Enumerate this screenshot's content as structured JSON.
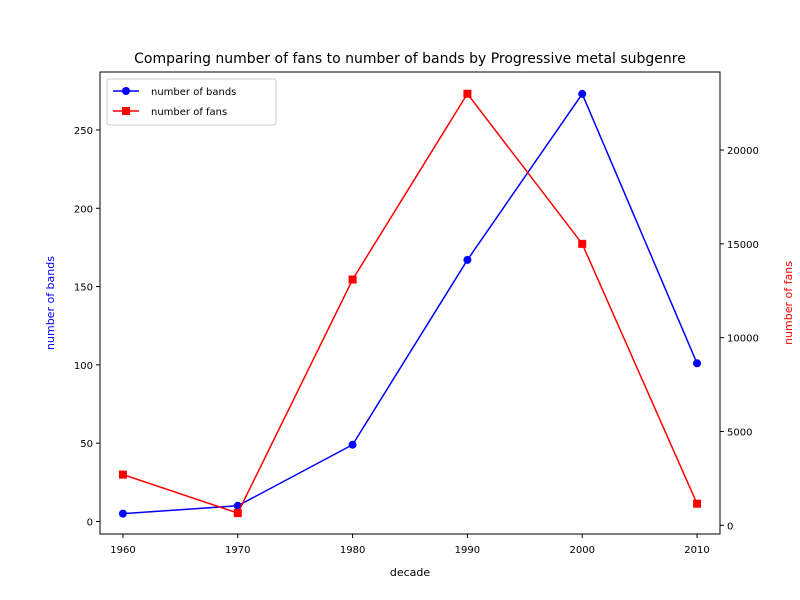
{
  "chart_data": {
    "type": "line",
    "title": "Comparing number of fans to number of bands by Progressive metal subgenre",
    "xlabel": "decade",
    "x": [
      1960,
      1970,
      1980,
      1990,
      2000,
      2010
    ],
    "xticks": [
      1960,
      1970,
      1980,
      1990,
      2000,
      2010
    ],
    "xlim": [
      1958,
      2012
    ],
    "legend": {
      "location": "upper left"
    },
    "grid": false,
    "series": [
      {
        "name": "number of bands",
        "axis": "left",
        "color": "#0000ff",
        "marker": "circle",
        "values": [
          5,
          10,
          49,
          167,
          273,
          101
        ]
      },
      {
        "name": "number of fans",
        "axis": "right",
        "color": "#ff0000",
        "marker": "square",
        "values": [
          2700,
          650,
          13100,
          23000,
          15000,
          1150
        ]
      }
    ],
    "y_left": {
      "label": "number of bands",
      "color": "#0000ff",
      "ylim": [
        -8,
        287
      ],
      "ticks": [
        0,
        50,
        100,
        150,
        200,
        250
      ]
    },
    "y_right": {
      "label": "number of fans",
      "color": "#ff0000",
      "ylim": [
        -465,
        24160
      ],
      "ticks": [
        0,
        5000,
        10000,
        15000,
        20000
      ]
    }
  }
}
